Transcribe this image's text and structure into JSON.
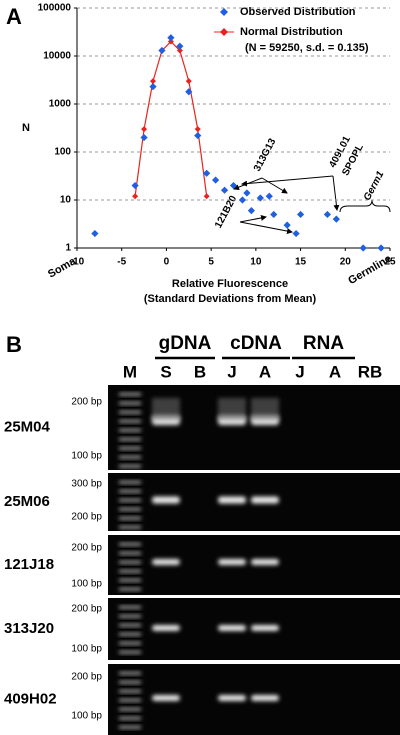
{
  "chart_data": {
    "type": "scatter",
    "panel_label": "A",
    "xlabel": "Relative Fluorescence",
    "xlabel2": "(Standard Deviations from Mean)",
    "ylabel": "N",
    "left_label": "Soma",
    "right_label": "Germline",
    "xlim": [
      -10,
      25
    ],
    "xticks": [
      -10,
      -5,
      0,
      5,
      10,
      15,
      20,
      25
    ],
    "ylim": [
      1,
      100000
    ],
    "yticks": [
      1,
      10,
      100,
      1000,
      10000,
      100000
    ],
    "log_y": true,
    "grid": true,
    "legend_note": "(N = 59250, s.d. = 0.135)",
    "series": [
      {
        "name": "Observed Distribution",
        "color": "#1f5fe0",
        "marker": "diamond",
        "line": false,
        "x": [
          -8,
          -3.5,
          -2.5,
          -1.5,
          -0.5,
          0.5,
          1.5,
          2.5,
          3.5,
          4.5,
          5.5,
          6.5,
          7.5,
          8.5,
          9,
          9.5,
          10.5,
          11.5,
          12,
          13.5,
          14.5,
          15,
          18,
          19,
          22,
          24
        ],
        "values": [
          2,
          20,
          200,
          2300,
          13000,
          24000,
          16000,
          1800,
          220,
          36,
          26,
          16,
          20,
          10,
          14,
          6,
          11,
          12,
          5,
          3,
          2,
          5,
          5,
          4,
          1,
          1
        ]
      },
      {
        "name": "Normal Distribution",
        "color": "#e8231e",
        "marker": "diamond",
        "line": true,
        "x": [
          -3.5,
          -2.5,
          -1.5,
          -0.5,
          0.5,
          1.5,
          2.5,
          3.5,
          4.5
        ],
        "values": [
          12,
          300,
          3000,
          13000,
          20000,
          13000,
          3000,
          300,
          12
        ]
      }
    ],
    "annotations": [
      "313G13",
      "409L01",
      "SPOPL",
      "121B20",
      "Germ1"
    ]
  },
  "panel_b": {
    "label": "B",
    "groups": [
      "gDNA",
      "cDNA",
      "RNA"
    ],
    "lanes": [
      "M",
      "S",
      "B",
      "J",
      "A",
      "J",
      "A",
      "RB"
    ],
    "rows": [
      {
        "name": "25M04",
        "markers": [
          "200 bp",
          "100 bp"
        ]
      },
      {
        "name": "25M06",
        "markers": [
          "300 bp",
          "200 bp"
        ]
      },
      {
        "name": "121J18",
        "markers": [
          "200 bp",
          "100 bp"
        ]
      },
      {
        "name": "313J20",
        "markers": [
          "200 bp",
          "100 bp"
        ]
      },
      {
        "name": "409H02",
        "markers": [
          "200 bp",
          "100 bp"
        ]
      }
    ]
  }
}
